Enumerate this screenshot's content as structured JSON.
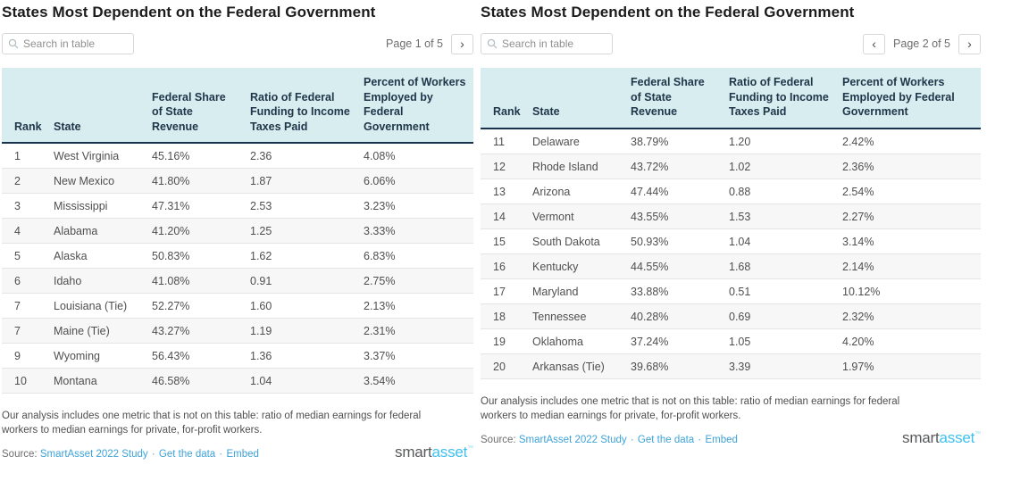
{
  "brand": {
    "logo_part1": "smart",
    "logo_part2": "asset",
    "logo_mark": "™"
  },
  "colors": {
    "header_bg": "#d8edf0",
    "header_border": "#16324e",
    "header_text": "#20374a",
    "body_text": "#4f4f4f",
    "row_stripe": "#f7f7f7",
    "row_border": "#e5e5e5",
    "title_text": "#1c1c1c",
    "muted_text": "#6d6d6d",
    "link_blue": "#3ea2d8",
    "logo_gray": "#58595b",
    "logo_blue": "#3fc0ee",
    "control_border": "#d6d6d6"
  },
  "chart_data": [
    {
      "type": "table",
      "title": "States Most Dependent on the Federal Government",
      "search": {
        "placeholder": "Search in table"
      },
      "pagination": {
        "label": "Page 1 of 5",
        "prev": "‹",
        "next": "›"
      },
      "columns": [
        "Rank",
        "State",
        "Federal Share of State Revenue",
        "Ratio of Federal Funding to Income Taxes Paid",
        "Percent of Workers Employed by Federal Government"
      ],
      "rows": [
        [
          "1",
          "West Virginia",
          "45.16%",
          "2.36",
          "4.08%"
        ],
        [
          "2",
          "New Mexico",
          "41.80%",
          "1.87",
          "6.06%"
        ],
        [
          "3",
          "Mississippi",
          "47.31%",
          "2.53",
          "3.23%"
        ],
        [
          "4",
          "Alabama",
          "41.20%",
          "1.25",
          "3.33%"
        ],
        [
          "5",
          "Alaska",
          "50.83%",
          "1.62",
          "6.83%"
        ],
        [
          "6",
          "Idaho",
          "41.08%",
          "0.91",
          "2.75%"
        ],
        [
          "7",
          "Louisiana (Tie)",
          "52.27%",
          "1.60",
          "2.13%"
        ],
        [
          "7",
          "Maine (Tie)",
          "43.27%",
          "1.19",
          "2.31%"
        ],
        [
          "9",
          "Wyoming",
          "56.43%",
          "1.36",
          "3.37%"
        ],
        [
          "10",
          "Montana",
          "46.58%",
          "1.04",
          "3.54%"
        ]
      ],
      "note": "Our analysis includes one metric that is not on this table: ratio of median earnings for federal workers to median earnings for private, for-profit workers.",
      "source": {
        "label": "Source:",
        "links": [
          "SmartAsset 2022 Study",
          "Get the data",
          "Embed"
        ],
        "separator": "·"
      }
    },
    {
      "type": "table",
      "title": "States Most Dependent on the Federal Government",
      "search": {
        "placeholder": "Search in table"
      },
      "pagination": {
        "label": "Page 2 of 5",
        "prev": "‹",
        "next": "›"
      },
      "columns": [
        "Rank",
        "State",
        "Federal Share of State Revenue",
        "Ratio of Federal Funding to Income Taxes Paid",
        "Percent of Workers Employed by Federal Government"
      ],
      "rows": [
        [
          "11",
          "Delaware",
          "38.79%",
          "1.20",
          "2.42%"
        ],
        [
          "12",
          "Rhode Island",
          "43.72%",
          "1.02",
          "2.36%"
        ],
        [
          "13",
          "Arizona",
          "47.44%",
          "0.88",
          "2.54%"
        ],
        [
          "14",
          "Vermont",
          "43.55%",
          "1.53",
          "2.27%"
        ],
        [
          "15",
          "South Dakota",
          "50.93%",
          "1.04",
          "3.14%"
        ],
        [
          "16",
          "Kentucky",
          "44.55%",
          "1.68",
          "2.14%"
        ],
        [
          "17",
          "Maryland",
          "33.88%",
          "0.51",
          "10.12%"
        ],
        [
          "18",
          "Tennessee",
          "40.28%",
          "0.69",
          "2.32%"
        ],
        [
          "19",
          "Oklahoma",
          "37.24%",
          "1.05",
          "4.20%"
        ],
        [
          "20",
          "Arkansas (Tie)",
          "39.68%",
          "3.39",
          "1.97%"
        ]
      ],
      "note": "Our analysis includes one metric that is not on this table: ratio of median earnings for federal workers to median earnings for private, for-profit workers.",
      "source": {
        "label": "Source:",
        "links": [
          "SmartAsset 2022 Study",
          "Get the data",
          "Embed"
        ],
        "separator": "·"
      }
    }
  ]
}
